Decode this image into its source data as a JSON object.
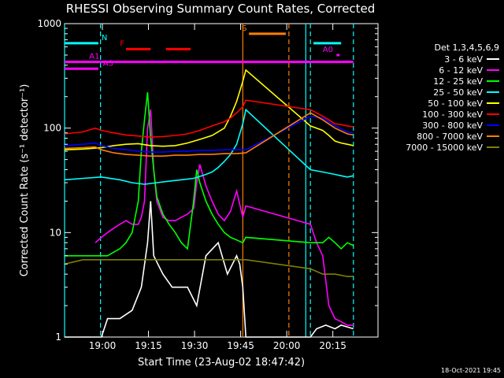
{
  "chart_data": {
    "type": "line",
    "title": "RHESSI Observing Summary Count Rates, Corrected",
    "xlabel": "Start Time (23-Aug-02 18:47:42)",
    "ylabel": "Corrected Count Rate (s⁻¹ detector⁻¹)",
    "y_scale": "log",
    "ylim": [
      1,
      1000
    ],
    "xlim_minutes_after_start": [
      0,
      102
    ],
    "x_tick_labels": [
      "19:00",
      "19:15",
      "19:30",
      "19:45",
      "20:00",
      "20:15"
    ],
    "x_tick_minutes": [
      12.3,
      27.3,
      42.3,
      57.3,
      72.3,
      87.3
    ],
    "y_tick_labels": [
      "1",
      "10",
      "100",
      "1000"
    ],
    "y_tick_values": [
      1,
      10,
      100,
      1000
    ],
    "grid": false,
    "legend_position": "right",
    "legend_header": "Det 1,3,4,5,6,9",
    "series": [
      {
        "name": "3 - 6 keV",
        "color": "#ffffff",
        "x": [
          0,
          12,
          14,
          18,
          22,
          25,
          27,
          28,
          29,
          32,
          35,
          40,
          43,
          46,
          50,
          53,
          56,
          57,
          58,
          59,
          80,
          82,
          85,
          88,
          90,
          94
        ],
        "y": [
          1,
          1,
          1.5,
          1.5,
          1.8,
          3,
          8,
          20,
          6,
          4,
          3,
          3,
          2,
          6,
          8,
          4,
          6,
          5,
          3,
          1,
          1,
          1.2,
          1.3,
          1.2,
          1.3,
          1.2
        ]
      },
      {
        "name": "6 - 12 keV",
        "color": "#ff00ff",
        "x": [
          10,
          12,
          14,
          16,
          18,
          20,
          22,
          24,
          25,
          26,
          27,
          28,
          29,
          30,
          32,
          34,
          36,
          38,
          40,
          42,
          43,
          44,
          46,
          48,
          50,
          52,
          54,
          56,
          58,
          59,
          80,
          82,
          84,
          86,
          88,
          90,
          92,
          94
        ],
        "y": [
          8,
          9,
          10,
          11,
          12,
          13,
          12,
          12,
          14,
          20,
          100,
          150,
          40,
          20,
          14,
          13,
          13,
          14,
          15,
          17,
          30,
          45,
          28,
          20,
          15,
          13,
          16,
          25,
          14,
          18,
          12,
          8,
          6,
          2,
          1.5,
          1.4,
          1.3,
          1.3
        ]
      },
      {
        "name": "12 - 25 keV",
        "color": "#00ff00",
        "x": [
          0,
          10,
          12,
          14,
          16,
          18,
          20,
          22,
          24,
          25,
          26,
          27,
          28,
          29,
          30,
          32,
          34,
          36,
          38,
          40,
          42,
          43,
          44,
          46,
          48,
          50,
          52,
          54,
          56,
          58,
          59,
          80,
          82,
          84,
          86,
          88,
          90,
          92,
          94
        ],
        "y": [
          6,
          6,
          6,
          6,
          6.5,
          7,
          8,
          10,
          20,
          60,
          120,
          220,
          80,
          40,
          22,
          15,
          12,
          10,
          8,
          7,
          20,
          40,
          30,
          20,
          15,
          12,
          10,
          9,
          8.5,
          8,
          9,
          8,
          8,
          8,
          9,
          8,
          7,
          8,
          7.5
        ]
      },
      {
        "name": "25 - 50 keV",
        "color": "#00ffff",
        "x": [
          0,
          6,
          12,
          18,
          22,
          26,
          30,
          34,
          38,
          42,
          46,
          48,
          50,
          52,
          54,
          56,
          58,
          59,
          80,
          84,
          88,
          90,
          92,
          94
        ],
        "y": [
          32,
          33,
          34,
          32,
          30,
          29,
          30,
          31,
          32,
          33,
          36,
          38,
          42,
          48,
          56,
          70,
          110,
          150,
          40,
          38,
          36,
          35,
          34,
          35
        ]
      },
      {
        "name": "50 - 100 keV",
        "color": "#ffff00",
        "x": [
          0,
          6,
          12,
          16,
          20,
          24,
          28,
          32,
          36,
          40,
          44,
          48,
          52,
          54,
          56,
          58,
          59,
          80,
          84,
          86,
          88,
          90,
          92,
          94
        ],
        "y": [
          62,
          63,
          65,
          68,
          70,
          71,
          68,
          67,
          68,
          72,
          78,
          85,
          100,
          130,
          180,
          280,
          360,
          105,
          95,
          85,
          75,
          72,
          70,
          68
        ]
      },
      {
        "name": "100 - 300 keV",
        "color": "#ff0000",
        "x": [
          0,
          6,
          10,
          12,
          16,
          20,
          24,
          28,
          32,
          36,
          40,
          44,
          48,
          52,
          54,
          56,
          58,
          59,
          80,
          82,
          84,
          86,
          88,
          90,
          92,
          94
        ],
        "y": [
          88,
          92,
          100,
          95,
          90,
          86,
          84,
          82,
          83,
          85,
          88,
          95,
          105,
          115,
          125,
          140,
          160,
          185,
          150,
          140,
          130,
          120,
          110,
          108,
          105,
          103
        ]
      },
      {
        "name": "300 - 800 keV",
        "color": "#0000ff",
        "x": [
          0,
          6,
          10,
          12,
          16,
          20,
          24,
          28,
          32,
          36,
          40,
          44,
          48,
          52,
          56,
          59,
          80,
          84,
          88,
          92,
          94
        ],
        "y": [
          68,
          70,
          72,
          68,
          64,
          62,
          60,
          59,
          59,
          60,
          60,
          61,
          61,
          62,
          62,
          62,
          130,
          125,
          105,
          92,
          90
        ]
      },
      {
        "name": "800 - 7000 keV",
        "color": "#ff8000",
        "x": [
          0,
          6,
          10,
          12,
          16,
          20,
          24,
          28,
          32,
          36,
          40,
          44,
          48,
          52,
          56,
          59,
          80,
          84,
          88,
          92,
          94
        ],
        "y": [
          64,
          65,
          66,
          62,
          58,
          56,
          55,
          54,
          54,
          55,
          55,
          56,
          56,
          57,
          57,
          58,
          140,
          120,
          100,
          88,
          86
        ]
      },
      {
        "name": "7000 - 15000 keV",
        "color": "#808000",
        "x": [
          0,
          6,
          12,
          18,
          24,
          30,
          36,
          42,
          48,
          54,
          59,
          80,
          84,
          88,
          92,
          94
        ],
        "y": [
          5,
          5.5,
          5.5,
          5.5,
          5.5,
          5.5,
          5.5,
          5.5,
          5.5,
          5.5,
          5.5,
          4.5,
          4,
          4,
          3.8,
          3.8
        ]
      }
    ],
    "annotations": [
      {
        "label": "N",
        "color": "#00ffff",
        "y": 650,
        "segments": [
          [
            0,
            11
          ],
          [
            81,
            90
          ]
        ],
        "label_at": 12
      },
      {
        "label": "F",
        "color": "#ff0000",
        "y": 570,
        "segments": [
          [
            20,
            28
          ],
          [
            33,
            41
          ]
        ],
        "label_at": 18
      },
      {
        "label": "S",
        "color": "#ff8000",
        "y": 800,
        "segments": [
          [
            60,
            72
          ]
        ],
        "label_at": 57.7
      },
      {
        "label": "A1",
        "color": "#ff00ff",
        "y": 430,
        "segments": [
          [
            0,
            94
          ]
        ],
        "label_at": 8
      },
      {
        "label": "A3",
        "color": "#ff00ff",
        "y": 370,
        "segments": [
          [
            0,
            11
          ]
        ],
        "label_at": 12.5
      },
      {
        "label": "A0",
        "color": "#ff00ff",
        "y": 500,
        "segments": [
          [
            88.5,
            89.5
          ]
        ],
        "label_at": 84
      }
    ],
    "vertical_markers": [
      {
        "x": 0,
        "color": "#00ffff",
        "style": "solid"
      },
      {
        "x": 11.7,
        "color": "#00ffff",
        "style": "dashed"
      },
      {
        "x": 58,
        "color": "#ff8000",
        "style": "solid"
      },
      {
        "x": 73,
        "color": "#ff8000",
        "style": "dashed"
      },
      {
        "x": 78.5,
        "color": "#00ffff",
        "style": "solid"
      },
      {
        "x": 80,
        "color": "#00ffff",
        "style": "dashed"
      },
      {
        "x": 94,
        "color": "#00ffff",
        "style": "dashed"
      }
    ]
  },
  "footer": {
    "timestamp": "18-Oct-2021 19:45"
  }
}
